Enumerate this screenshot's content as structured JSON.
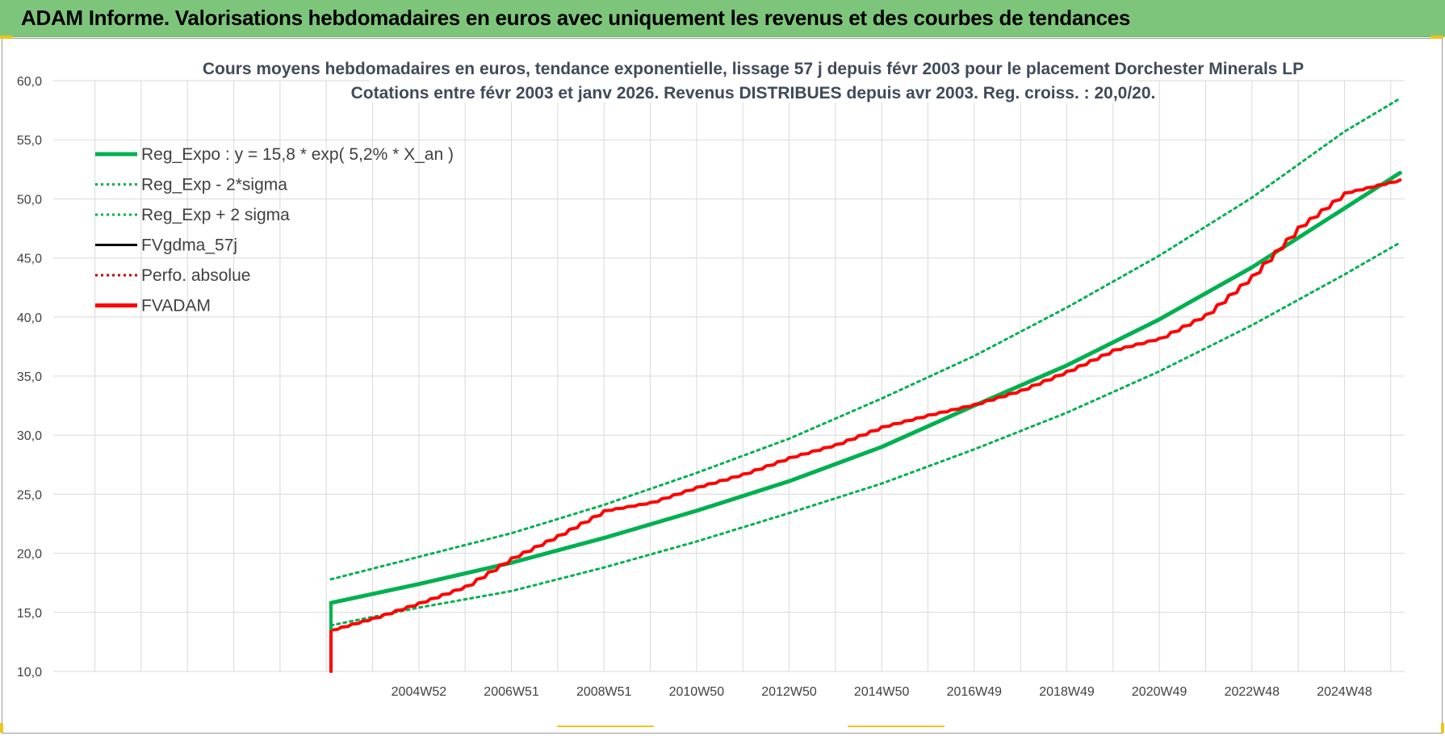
{
  "header": {
    "title": "ADAM Informe. Valorisations hebdomadaires en euros avec uniquement les revenus et des courbes de tendances"
  },
  "colors": {
    "header_bg": "#7dc57a",
    "reg_green": "#00b050",
    "adam_red": "#ff0000",
    "perfo_red": "#c00000",
    "fvgdma_black": "#000000",
    "grid": "#d9d9d9"
  },
  "chart_data": {
    "type": "line",
    "title_lines": [
      "Cours moyens hebdomadaires en euros, tendance exponentielle, lissage 57 j depuis févr 2003 pour le placement Dorchester Minerals LP",
      "Cotations entre févr 2003 et janv 2026. Revenus DISTRIBUES depuis avr 2003. Reg. croiss. : 20,0/20."
    ],
    "xlabel": "",
    "ylabel": "",
    "ylim": [
      10,
      60
    ],
    "xlim": [
      1997.1,
      2026.3
    ],
    "y_ticks": [
      "10,0",
      "15,0",
      "20,0",
      "25,0",
      "30,0",
      "35,0",
      "40,0",
      "45,0",
      "50,0",
      "55,0",
      "60,0"
    ],
    "x_tick_labels": [
      {
        "label": "2004W52",
        "x": 2005.0
      },
      {
        "label": "2006W51",
        "x": 2007.0
      },
      {
        "label": "2008W51",
        "x": 2009.0
      },
      {
        "label": "2010W50",
        "x": 2011.0
      },
      {
        "label": "2012W50",
        "x": 2013.0
      },
      {
        "label": "2014W50",
        "x": 2015.0
      },
      {
        "label": "2016W49",
        "x": 2017.0
      },
      {
        "label": "2018W49",
        "x": 2019.0
      },
      {
        "label": "2020W49",
        "x": 2021.0
      },
      {
        "label": "2022W48",
        "x": 2023.0
      },
      {
        "label": "2024W48",
        "x": 2025.0
      }
    ],
    "grid": true,
    "legend_placement": "top-left",
    "legend": [
      {
        "label": "Reg_Expo : y = 15,8 * exp( 5,2% *  X_an )",
        "color": "#00b050",
        "style": "solid-thick"
      },
      {
        "label": "Reg_Exp - 2*sigma",
        "color": "#00b050",
        "style": "dotted"
      },
      {
        "label": "Reg_Exp + 2 sigma",
        "color": "#00b050",
        "style": "dotted"
      },
      {
        "label": "FVgdma_57j",
        "color": "#000000",
        "style": "solid"
      },
      {
        "label": "Perfo. absolue",
        "color": "#c00000",
        "style": "dotted"
      },
      {
        "label": "FVADAM",
        "color": "#ff0000",
        "style": "solid-thick"
      }
    ],
    "series": [
      {
        "name": "Reg_Expo : y = 15,8 * exp( 5,2% *  X_an )",
        "x": [
          2003.1,
          2005,
          2007,
          2009,
          2011,
          2013,
          2015,
          2017,
          2019,
          2021,
          2023,
          2025,
          2026.2
        ],
        "values": [
          15.8,
          17.4,
          19.2,
          21.3,
          23.6,
          26.1,
          29.0,
          32.5,
          35.9,
          39.8,
          44.2,
          49.2,
          52.2
        ]
      },
      {
        "name": "Reg_Exp - 2*sigma",
        "x": [
          2003.1,
          2005,
          2007,
          2009,
          2011,
          2013,
          2015,
          2017,
          2019,
          2021,
          2023,
          2025,
          2026.2
        ],
        "values": [
          13.9,
          15.4,
          16.8,
          18.8,
          21.0,
          23.4,
          25.9,
          28.8,
          31.9,
          35.4,
          39.3,
          43.6,
          46.3
        ]
      },
      {
        "name": "Reg_Exp + 2 sigma",
        "x": [
          2003.1,
          2005,
          2007,
          2009,
          2011,
          2013,
          2015,
          2017,
          2019,
          2021,
          2023,
          2025,
          2026.2
        ],
        "values": [
          17.8,
          19.7,
          21.7,
          24.1,
          26.8,
          29.7,
          33.1,
          36.7,
          40.8,
          45.2,
          50.1,
          55.7,
          58.5
        ]
      },
      {
        "name": "FVADAM",
        "x": [
          2003.1,
          2003.1,
          2004,
          2005,
          2006,
          2007,
          2008,
          2009,
          2010,
          2011,
          2012,
          2013,
          2014,
          2015,
          2016,
          2017,
          2018,
          2019,
          2020,
          2021,
          2022,
          2023,
          2024,
          2025,
          2026.2
        ],
        "values": [
          10.0,
          13.5,
          14.5,
          15.8,
          17.2,
          19.6,
          21.5,
          23.6,
          24.3,
          25.6,
          26.7,
          28.1,
          29.2,
          30.7,
          31.7,
          32.6,
          33.8,
          35.4,
          37.2,
          38.2,
          40.2,
          43.5,
          47.6,
          50.5,
          51.6
        ]
      }
    ]
  }
}
